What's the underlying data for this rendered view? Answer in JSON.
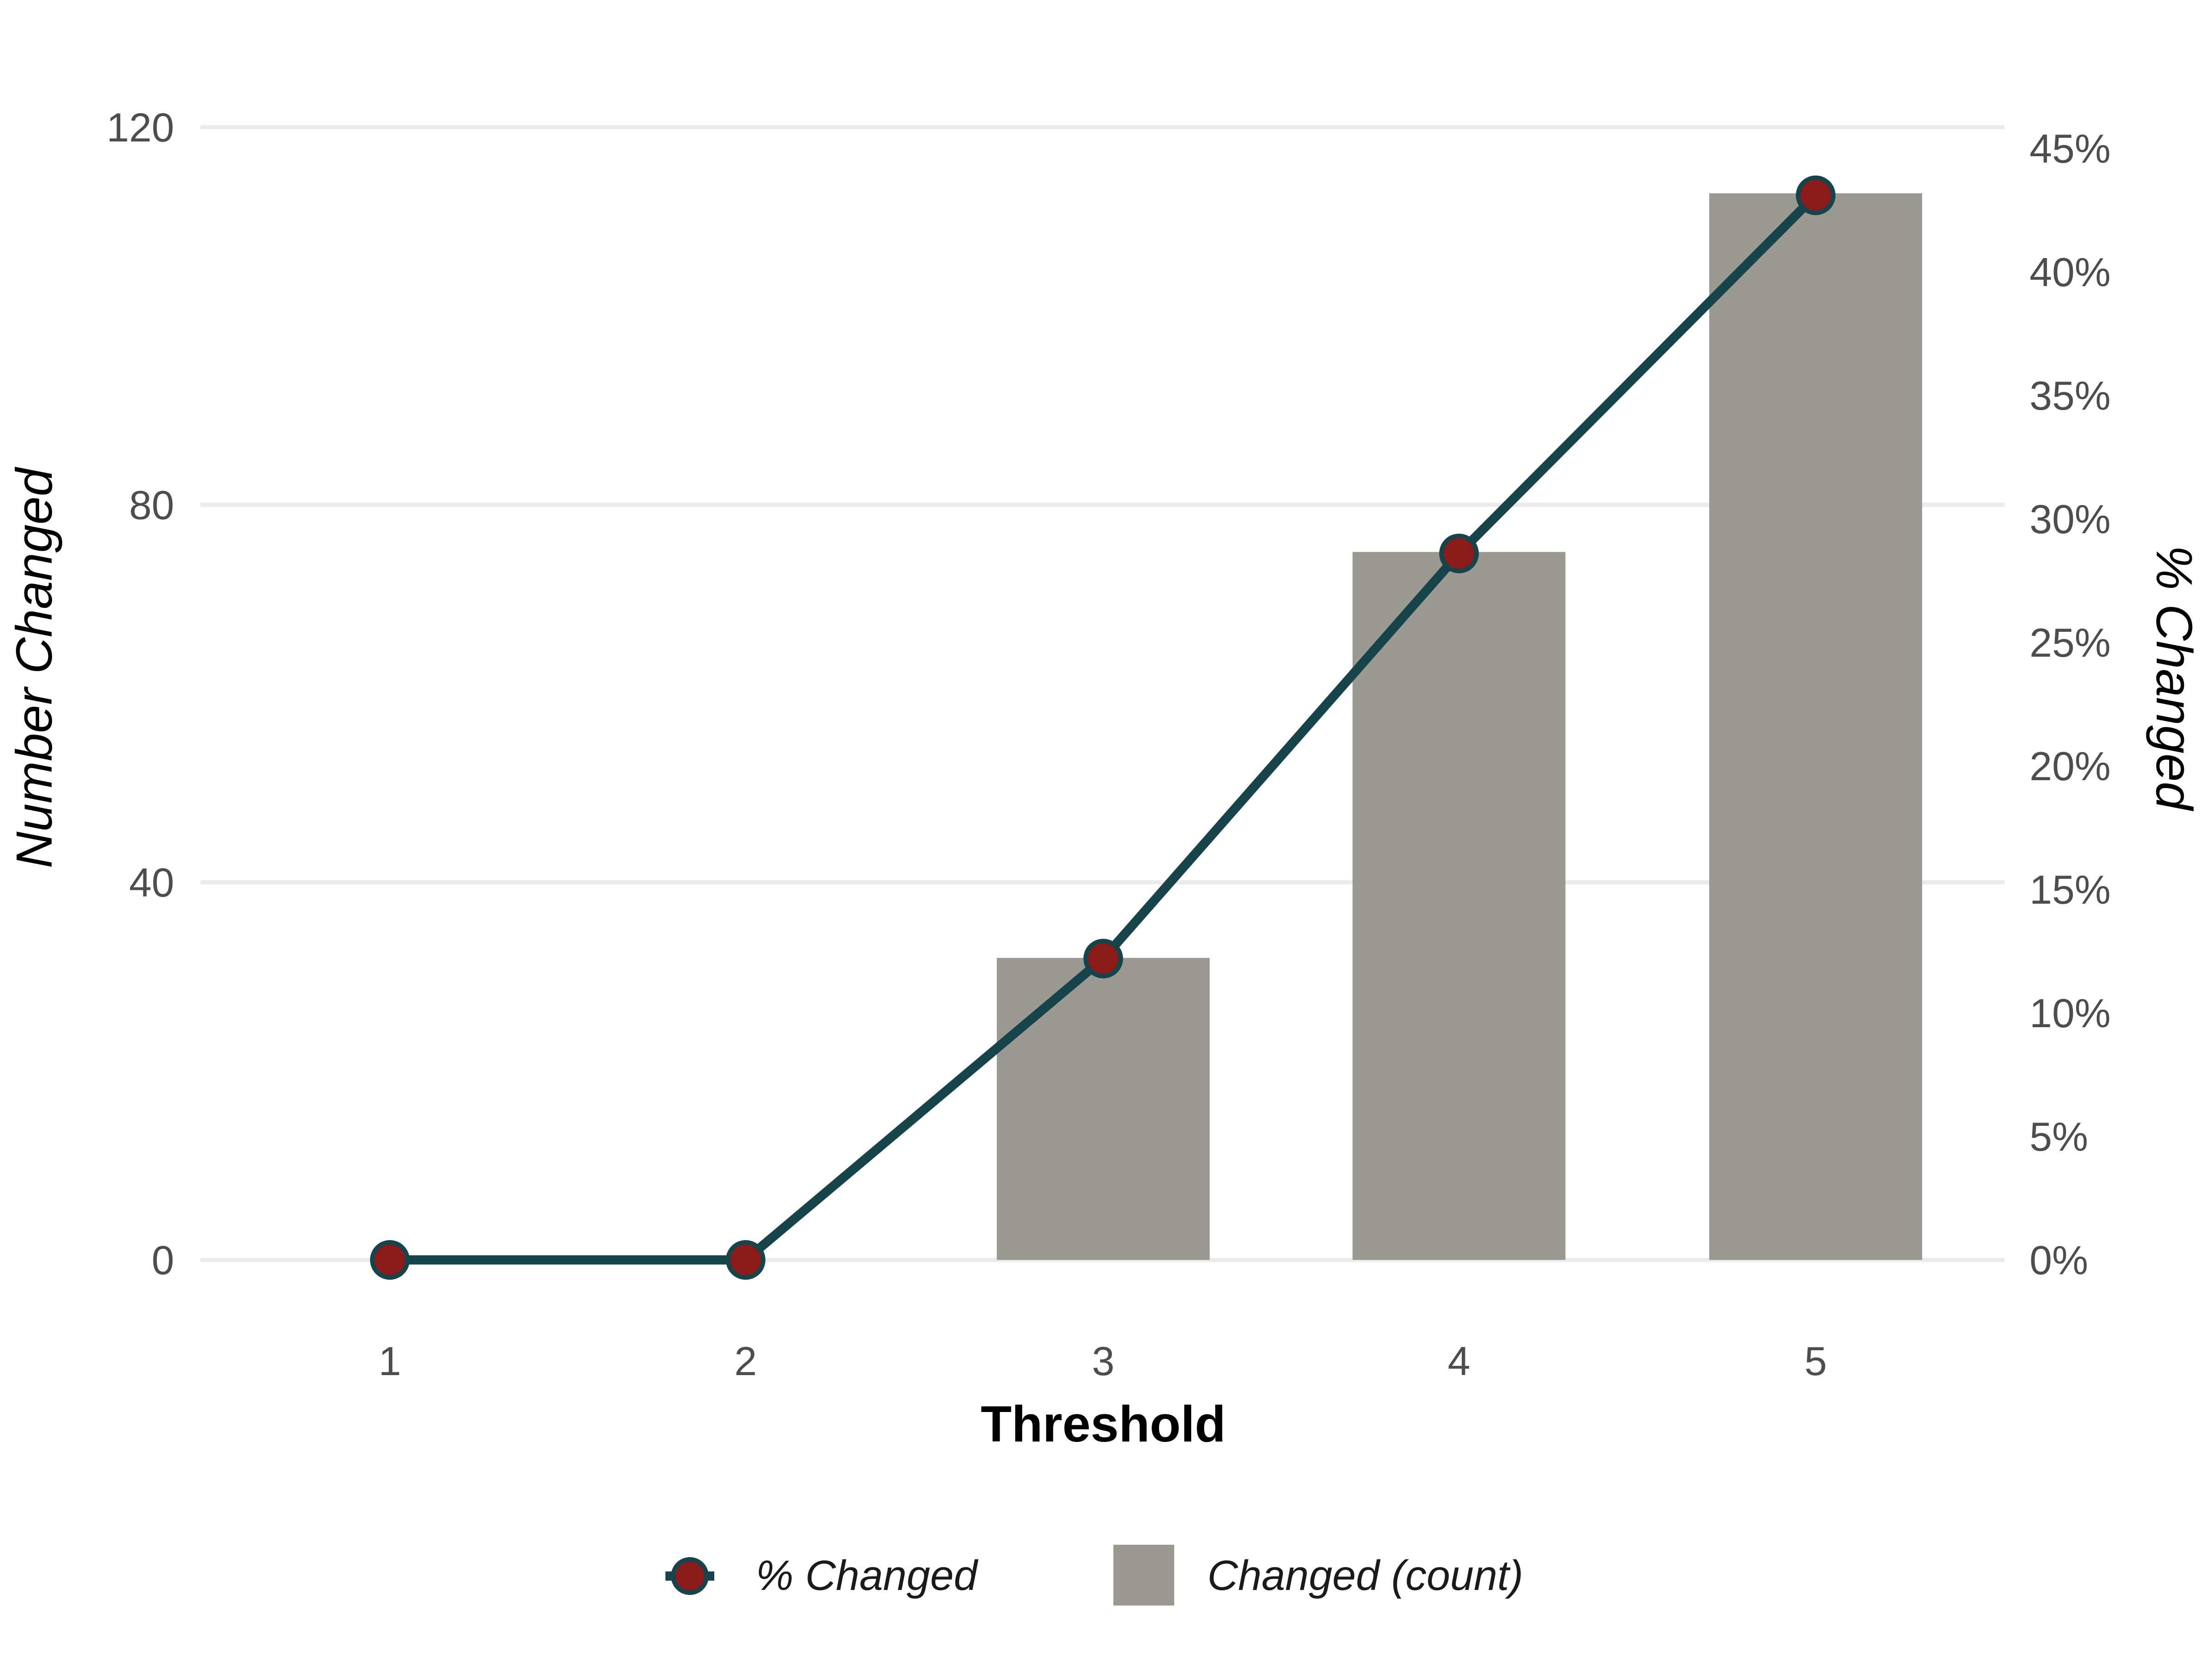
{
  "chart_data": {
    "type": "bar",
    "categories": [
      "1",
      "2",
      "3",
      "4",
      "5"
    ],
    "xlabel": "Threshold",
    "ylabel": "Number Changed",
    "y2label": "% Changed",
    "ylim": [
      0,
      120
    ],
    "y_ticks": [
      "0",
      "40",
      "80",
      "120"
    ],
    "y2lim": [
      0,
      45
    ],
    "y2_ticks": [
      "0%",
      "5%",
      "10%",
      "15%",
      "20%",
      "25%",
      "30%",
      "35%",
      "40%",
      "45%"
    ],
    "grid": true,
    "legend_position": "bottom",
    "series": [
      {
        "name": "Changed (count)",
        "type": "bar",
        "axis": "left",
        "values": [
          0,
          0,
          32,
          75,
          113
        ],
        "color": "#9a9a92"
      },
      {
        "name": "% Changed",
        "type": "line",
        "axis": "right",
        "values": [
          0,
          0,
          12.2,
          28.6,
          43.1
        ],
        "color": "#17444a",
        "marker_color": "#8b1a1a"
      }
    ]
  }
}
